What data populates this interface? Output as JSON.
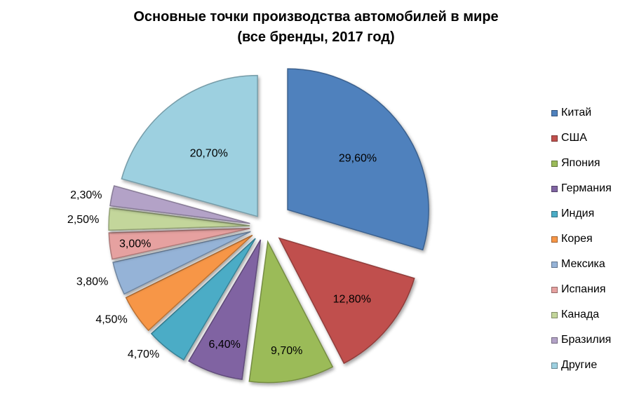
{
  "chart_data": {
    "type": "pie",
    "title": "Основные точки производства автомобилей в мире",
    "subtitle": "(все бренды, 2017 год)",
    "categories": [
      "Китай",
      "США",
      "Япония",
      "Германия",
      "Индия",
      "Корея",
      "Мексика",
      "Испания",
      "Канада",
      "Бразилия",
      "Другие"
    ],
    "values": [
      29.6,
      12.8,
      9.7,
      6.4,
      4.7,
      4.5,
      3.8,
      3.0,
      2.5,
      2.3,
      20.7
    ],
    "labels": [
      "29,60%",
      "12,80%",
      "9,70%",
      "6,40%",
      "4,70%",
      "4,50%",
      "3,80%",
      "3,00%",
      "2,50%",
      "2,30%",
      "20,70%"
    ],
    "colors": [
      "#4F81BD",
      "#C0504D",
      "#9BBB59",
      "#8064A2",
      "#4BACC6",
      "#F79646",
      "#95B3D7",
      "#E6A1A0",
      "#C3D69B",
      "#B3A2C7",
      "#9DD0E0"
    ],
    "legend_position": "right"
  }
}
